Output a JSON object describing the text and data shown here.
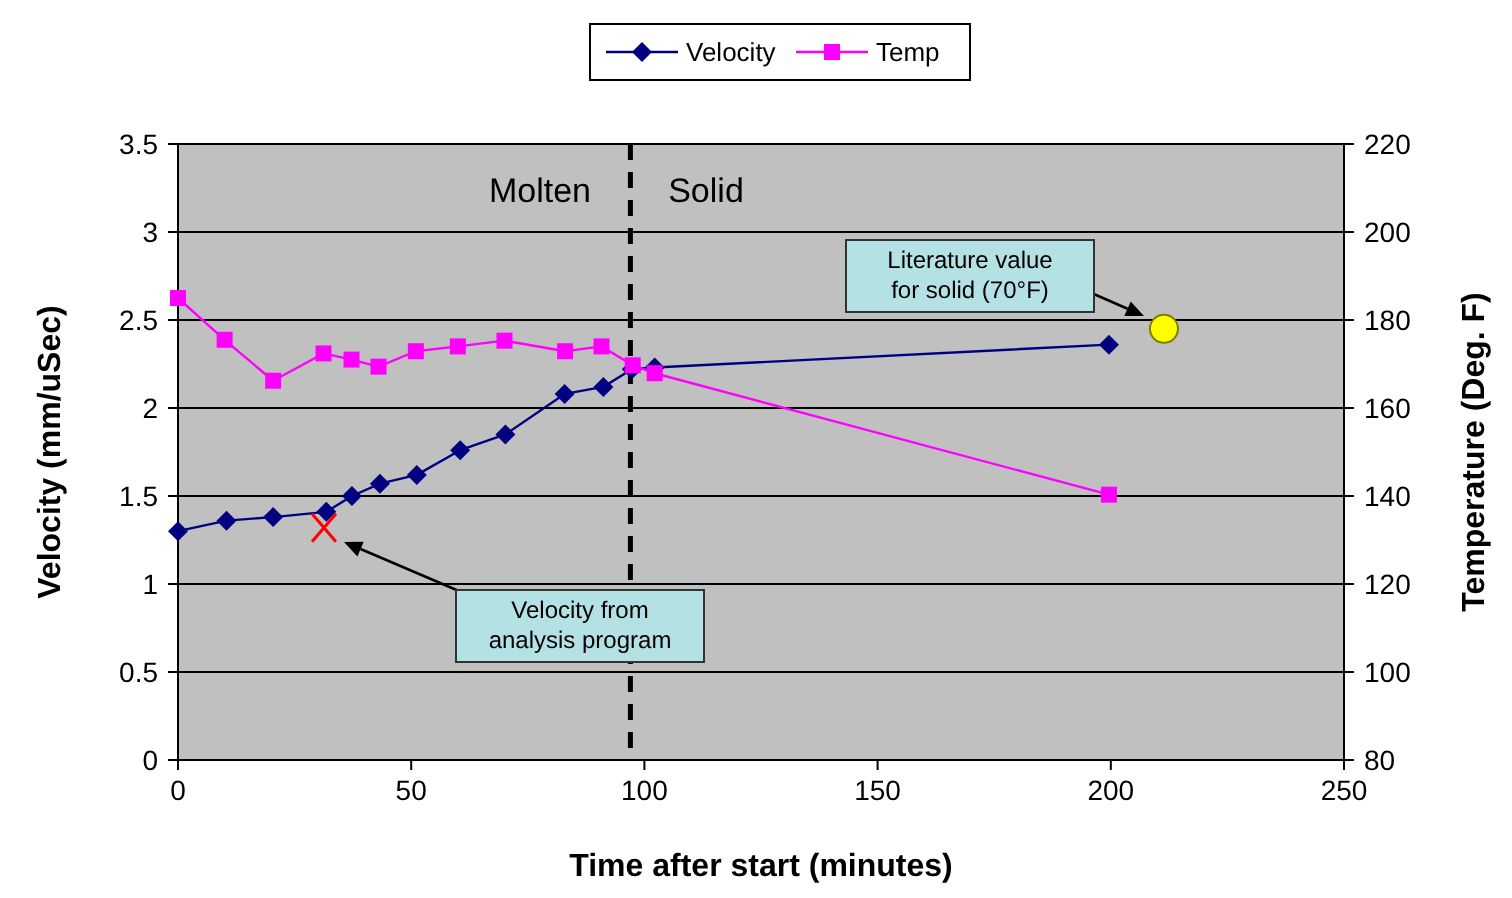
{
  "chart_data": {
    "type": "line",
    "xlabel": "Time after start (minutes)",
    "ylabel": "Velocity (mm/uSec)",
    "y2label": "Temperature (Deg. F)",
    "xlim": [
      0,
      250
    ],
    "xticks": [
      0,
      50,
      100,
      150,
      200,
      250
    ],
    "ylim": [
      0,
      3.5
    ],
    "yticks": [
      0,
      0.5,
      1,
      1.5,
      2,
      2.5,
      3,
      3.5
    ],
    "y2lim": [
      80,
      220
    ],
    "y2ticks": [
      80,
      100,
      120,
      140,
      160,
      180,
      200,
      220
    ],
    "grid": "y",
    "legend": "top",
    "series": [
      {
        "name": "Velocity",
        "color": "#000080",
        "marker": "diamond",
        "x": [
          0,
          10.4,
          20.4,
          31.8,
          37.3,
          43.3,
          51.2,
          60.5,
          70.2,
          82.9,
          91.2,
          97.3,
          102.2,
          199.6
        ],
        "values": [
          1.3,
          1.36,
          1.38,
          1.41,
          1.5,
          1.57,
          1.62,
          1.76,
          1.85,
          2.08,
          2.12,
          2.22,
          2.23,
          2.36
        ]
      },
      {
        "name": "Temp",
        "color": "#ff00ff",
        "marker": "square",
        "axis": "y2",
        "x": [
          0,
          10,
          20.4,
          31.2,
          37.2,
          43,
          51,
          60,
          70,
          83,
          90.8,
          97.5,
          102.2,
          199.6
        ],
        "values": [
          185,
          175.5,
          166.2,
          172.4,
          171,
          169.4,
          172.9,
          174,
          175.3,
          172.9,
          174,
          169.7,
          167.9,
          140.3
        ]
      },
      {
        "type": "scatter",
        "color": "#ffff00",
        "marker": "circle",
        "x": [
          211.4
        ],
        "values": [
          2.45
        ]
      },
      {
        "type": "scatter",
        "color": "#ff0000",
        "marker": "cross",
        "x": [
          31.3
        ],
        "values": [
          1.32
        ]
      }
    ],
    "ref_lines": [
      {
        "axis": "x",
        "value": 97,
        "color": "#000000",
        "line_style": "dashed"
      }
    ],
    "annotations": [
      "Molten",
      "Solid",
      "Literature value\nfor solid (70°F)",
      "Velocity from\nanalysis program"
    ]
  }
}
